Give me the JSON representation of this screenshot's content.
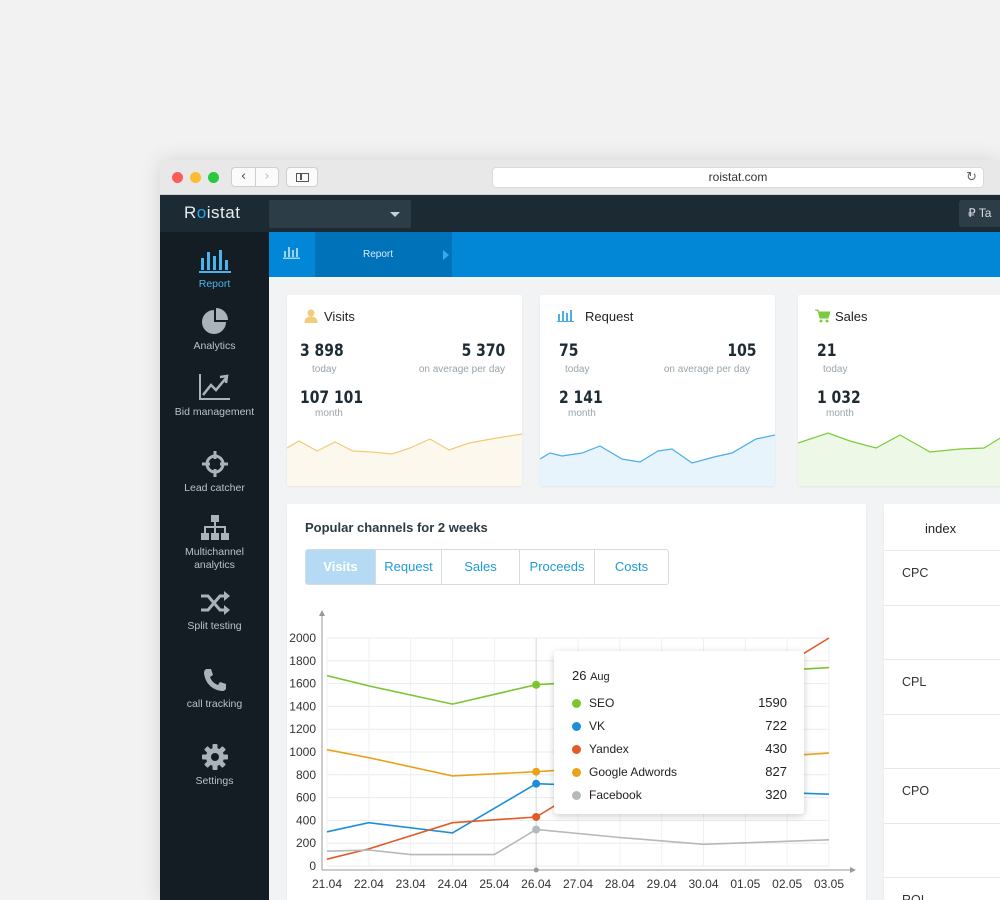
{
  "browser": {
    "url": "roistat.com"
  },
  "app": {
    "logo_pre": "R",
    "logo_o": "o",
    "logo_post": "istat",
    "tariff_label": "Ta"
  },
  "sidebar": {
    "items": [
      {
        "label": "Report",
        "icon": "bar-chart-icon"
      },
      {
        "label": "Analytics",
        "icon": "pie-chart-icon"
      },
      {
        "label": "Bid management",
        "icon": "trend-chart-icon"
      },
      {
        "label": "Lead catcher",
        "icon": "crosshair-icon"
      },
      {
        "label": "Multichannel analytics",
        "icon": "hierarchy-icon"
      },
      {
        "label": "Split testing",
        "icon": "shuffle-icon"
      },
      {
        "label": "call tracking",
        "icon": "phone-icon"
      },
      {
        "label": "Settings",
        "icon": "gear-icon"
      }
    ]
  },
  "tabbar": {
    "active_tab": "Report"
  },
  "cards": [
    {
      "title": "Visits",
      "icon": "person-icon",
      "today": "3 898",
      "today_label": "today",
      "avg": "5 370",
      "avg_label": "on average per day",
      "month": "107 101",
      "month_label": "month",
      "color": "#f3c978",
      "fill": "#fdf8ee"
    },
    {
      "title": "Request",
      "icon": "bar-chart-icon",
      "today": "75",
      "today_label": "today",
      "avg": "105",
      "avg_label": "on average per day",
      "month": "2 141",
      "month_label": "month",
      "color": "#4aaee8",
      "fill": "#e8f4fc"
    },
    {
      "title": "Sales",
      "icon": "cart-icon",
      "today": "21",
      "today_label": "today",
      "month": "1 032",
      "month_label": "month",
      "color": "#7ccb3c",
      "fill": "#eef8e6"
    }
  ],
  "colors": {
    "accent": "#0286d6",
    "sidebar": "#141d23",
    "header": "#1c2a33"
  },
  "channels_panel": {
    "title": "Popular channels for 2 weeks",
    "buttons": [
      "Visits",
      "Request",
      "Sales",
      "Proceeds",
      "Costs"
    ],
    "active_button": "Visits"
  },
  "chart_data": {
    "type": "line",
    "x": [
      "21.04",
      "22.04",
      "23.04",
      "24.04",
      "25.04",
      "26.04",
      "27.04",
      "28.04",
      "29.04",
      "30.04",
      "01.05",
      "02.05",
      "03.05"
    ],
    "yticks": [
      0,
      200,
      400,
      600,
      800,
      1000,
      1200,
      1400,
      1600,
      1800,
      2000
    ],
    "ylim": [
      0,
      2000
    ],
    "grid": true,
    "series": [
      {
        "name": "SEO",
        "color": "#7ac530",
        "values": [
          1670,
          1580,
          null,
          1420,
          null,
          1590,
          null,
          null,
          null,
          null,
          null,
          null,
          1740
        ]
      },
      {
        "name": "VK",
        "color": "#1d8fd8",
        "values": [
          300,
          380,
          null,
          290,
          null,
          722,
          null,
          null,
          null,
          null,
          null,
          null,
          630
        ]
      },
      {
        "name": "Yandex",
        "color": "#e35a26",
        "values": [
          60,
          150,
          null,
          380,
          null,
          430,
          null,
          null,
          null,
          null,
          null,
          null,
          2000
        ]
      },
      {
        "name": "Google Adwords",
        "color": "#e9a31b",
        "values": [
          1020,
          950,
          null,
          790,
          null,
          827,
          null,
          null,
          null,
          null,
          null,
          null,
          990
        ]
      },
      {
        "name": "Facebook",
        "color": "#b4b9bc",
        "values": [
          130,
          140,
          100,
          100,
          100,
          320,
          null,
          250,
          null,
          190,
          null,
          null,
          230
        ]
      }
    ],
    "tooltip": {
      "day": "26",
      "month": "Aug",
      "rows": [
        {
          "name": "SEO",
          "value": "1590",
          "color": "#7ac530"
        },
        {
          "name": "VK",
          "value": "722",
          "color": "#1d8fd8"
        },
        {
          "name": "Yandex",
          "value": "430",
          "color": "#e35a26"
        },
        {
          "name": "Google Adwords",
          "value": "827",
          "color": "#e9a31b"
        },
        {
          "name": "Facebook",
          "value": "320",
          "color": "#b4b9bc"
        }
      ]
    }
  },
  "index_table": {
    "header": "index",
    "rows": [
      "CPC",
      "",
      "CPL",
      "",
      "CPO",
      "",
      "ROI"
    ]
  }
}
